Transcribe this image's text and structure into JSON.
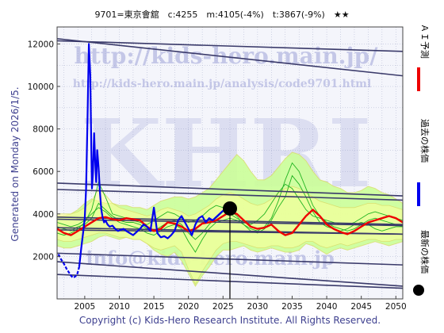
{
  "header": {
    "title": "9701=東京會舘　c:4255　m:4105(-4%)　t:3867(-9%)　★★"
  },
  "side_text": "Generated on Monday 2026/1/5.",
  "copyright": "Copyright (c) Kids-Hero Research Institute. All Rights Reserved.",
  "watermarks": {
    "url": "http://kids-hero.main.jp/",
    "path": "http://kids-hero.main.jp/analysis/code9701.html",
    "big": "KHRI",
    "mail": "info@kids-hero.main.jp"
  },
  "legend": [
    {
      "label": "ＡＩ予測",
      "color": "#ee0000",
      "kind": "line"
    },
    {
      "label": "過去の株価",
      "color": "#0000ee",
      "kind": "line"
    },
    {
      "label": "最新の株価",
      "color": "#000000",
      "kind": "dot"
    }
  ],
  "chart_data": {
    "type": "line",
    "xlim": [
      2001,
      2051
    ],
    "ylim": [
      0,
      12800
    ],
    "xticks": [
      2005,
      2010,
      2015,
      2020,
      2025,
      2030,
      2035,
      2040,
      2045,
      2050
    ],
    "yticks": [
      2000,
      4000,
      6000,
      8000,
      10000,
      12000
    ],
    "grid": true,
    "colors": {
      "history": "#0000ee",
      "ai": "#ee0000",
      "band_fill": "#ccff99",
      "band_fill_dark": "#a8e065",
      "band_edge": "#d8e070",
      "green": "#22b422",
      "envelope": "#ffff99",
      "trend": "#3a3a6a",
      "marker": "#000000"
    },
    "latest": {
      "x": 2026.0,
      "y": 4255
    },
    "history": {
      "x": [
        2001.2,
        2001.5,
        2002.0,
        2002.4,
        2002.8,
        2003.0,
        2003.3,
        2003.6,
        2003.9,
        2004.2,
        2004.5,
        2004.8,
        2005.0,
        2005.2,
        2005.4,
        2005.6,
        2005.8,
        2005.95,
        2006.05,
        2006.2,
        2006.35,
        2006.5,
        2006.65,
        2006.8,
        2007.0,
        2007.2,
        2007.4,
        2007.6,
        2007.8,
        2008.0,
        2008.3,
        2008.6,
        2009.0,
        2009.4,
        2009.8,
        2010.2,
        2010.6,
        2011.0,
        2011.5,
        2012.0,
        2012.5,
        2013.0,
        2013.5,
        2014.0,
        2014.5,
        2015.0,
        2015.5,
        2016.0,
        2016.5,
        2017.0,
        2017.5,
        2018.0,
        2018.5,
        2019.0,
        2019.5,
        2020.0,
        2020.5,
        2021.0,
        2021.5,
        2022.0,
        2022.5,
        2023.0,
        2023.5,
        2024.0,
        2024.5,
        2025.0,
        2025.5,
        2026.0
      ],
      "y": [
        2100,
        1900,
        1650,
        1400,
        1200,
        1100,
        1000,
        1050,
        1150,
        1500,
        2400,
        3200,
        3800,
        5200,
        8500,
        12000,
        10500,
        7000,
        5200,
        6000,
        7800,
        6500,
        5500,
        7000,
        6200,
        5000,
        4200,
        3800,
        3600,
        3700,
        3500,
        3400,
        3450,
        3300,
        3200,
        3250,
        3300,
        3200,
        3100,
        3000,
        3150,
        3300,
        3500,
        3400,
        3200,
        4300,
        3100,
        2900,
        2950,
        2850,
        3000,
        3200,
        3700,
        3900,
        3600,
        3300,
        3000,
        3500,
        3800,
        3900,
        3600,
        3800,
        3700,
        3850,
        4000,
        4150,
        4100,
        4255
      ]
    },
    "ai": {
      "x": [
        2001.0,
        2002.0,
        2003.0,
        2004.0,
        2005.0,
        2006.0,
        2007.0,
        2008.0,
        2009.0,
        2010.0,
        2011.0,
        2012.0,
        2013.0,
        2014.0,
        2015.0,
        2016.0,
        2017.0,
        2018.0,
        2019.0,
        2020.0,
        2021.0,
        2022.0,
        2023.0,
        2024.0,
        2025.0,
        2026.0,
        2027.0,
        2028.0,
        2029.0,
        2030.0,
        2031.0,
        2032.0,
        2033.0,
        2034.0,
        2035.0,
        2036.0,
        2037.0,
        2038.0,
        2039.0,
        2040.0,
        2041.0,
        2042.0,
        2043.0,
        2044.0,
        2045.0,
        2046.0,
        2047.0,
        2048.0,
        2049.0,
        2050.0,
        2051.0
      ],
      "y": [
        3300,
        3100,
        3000,
        3200,
        3400,
        3600,
        3800,
        3850,
        3750,
        3700,
        3800,
        3750,
        3700,
        3400,
        3200,
        3300,
        3600,
        3550,
        3400,
        3200,
        3300,
        3550,
        3600,
        3700,
        3900,
        4100,
        4000,
        3700,
        3400,
        3300,
        3350,
        3500,
        3200,
        3000,
        3100,
        3500,
        3900,
        4200,
        3900,
        3500,
        3300,
        3150,
        3050,
        3200,
        3400,
        3600,
        3700,
        3800,
        3900,
        3800,
        3600
      ]
    },
    "band_top": [
      3900,
      3900,
      4000,
      4200,
      4500,
      4700,
      4600,
      4500,
      4500,
      4400,
      4400,
      4300,
      4300,
      4200,
      4400,
      4600,
      4700,
      4800,
      4800,
      4700,
      4800,
      5000,
      5200,
      5600,
      6000,
      6400,
      6800,
      6500,
      6000,
      5600,
      5600,
      5800,
      6200,
      6600,
      6900,
      6800,
      6500,
      6000,
      5600,
      5500,
      5300,
      5200,
      5000,
      5000,
      5100,
      5300,
      5200,
      5000,
      4900,
      4700,
      4500
    ],
    "band_bottom": [
      2500,
      2400,
      2400,
      2500,
      2600,
      2700,
      2900,
      3000,
      2900,
      2800,
      2900,
      2800,
      2800,
      2600,
      2300,
      2100,
      2000,
      2200,
      1800,
      1200,
      600,
      1100,
      1500,
      2000,
      2300,
      2300,
      2400,
      2500,
      2300,
      2200,
      2300,
      2400,
      2300,
      2200,
      2200,
      2300,
      2600,
      2500,
      2300,
      2100,
      2300,
      2400,
      2300,
      2400,
      2500,
      2600,
      2700,
      2600,
      2500,
      2600,
      2700
    ],
    "green_lines": [
      [
        3100,
        3000,
        3100,
        3300,
        3600,
        4200,
        5500,
        4800,
        4000,
        3900,
        3800,
        3700,
        3600,
        3500,
        3700,
        3900,
        4100,
        4000,
        3800,
        3600,
        3700,
        3900,
        4200,
        4400,
        4300,
        4000,
        3800,
        3600,
        3500,
        3700,
        4000,
        4500,
        5000,
        5400,
        5200,
        4700,
        4200,
        3900,
        3800,
        3700,
        3600,
        3500,
        3500,
        3600,
        3800,
        4000,
        4100,
        4000,
        3900,
        3800,
        3700
      ],
      [
        3400,
        3300,
        3200,
        3400,
        3500,
        3800,
        4500,
        4200,
        3900,
        3700,
        3600,
        3600,
        3500,
        3300,
        3200,
        3400,
        3600,
        3700,
        3500,
        3100,
        2800,
        3100,
        3500,
        3800,
        4100,
        4200,
        3900,
        3500,
        3200,
        3100,
        3300,
        3700,
        4300,
        4800,
        5800,
        5400,
        4800,
        4100,
        3600,
        3400,
        3300,
        3200,
        3300,
        3500,
        3600,
        3500,
        3300,
        3200,
        3300,
        3400,
        3400
      ],
      [
        3600,
        3500,
        3400,
        3500,
        3700,
        4000,
        4300,
        4100,
        3800,
        3600,
        3500,
        3400,
        3300,
        3100,
        3000,
        3200,
        3400,
        3500,
        3300,
        2700,
        2200,
        2800,
        3300,
        3600,
        3700,
        3800,
        3700,
        3500,
        3300,
        3200,
        3400,
        3800,
        4600,
        5600,
        6400,
        6000,
        5200,
        4400,
        3900,
        3600,
        3400,
        3300,
        3200,
        3300,
        3500,
        3700,
        3800,
        3700,
        3600,
        3500,
        3400
      ]
    ],
    "envelope_upper": [
      4000,
      4000,
      4000,
      4100,
      4300,
      4600,
      5200,
      4900,
      4500,
      4300,
      4200,
      4100,
      4000,
      3900,
      4000,
      4200,
      4300,
      4200,
      4100,
      3900,
      4000,
      4200,
      4400,
      4700,
      4900,
      5000,
      4900,
      4700,
      4500,
      4400,
      4500,
      4700,
      5000,
      5200,
      5300,
      5200,
      5000,
      4800,
      4600,
      4500,
      4400,
      4300,
      4300,
      4300,
      4400,
      4500,
      4500,
      4400,
      4400,
      4300,
      4200
    ],
    "envelope_lower": [
      2800,
      2700,
      2700,
      2800,
      2900,
      3000,
      3100,
      3100,
      3000,
      2900,
      2900,
      2800,
      2800,
      2600,
      2400,
      2300,
      2400,
      2500,
      2200,
      1400,
      700,
      1300,
      1800,
      2300,
      2600,
      2700,
      2700,
      2600,
      2500,
      2400,
      2400,
      2500,
      2500,
      2400,
      2400,
      2500,
      2700,
      2700,
      2500,
      2400,
      2500,
      2600,
      2500,
      2600,
      2700,
      2800,
      2800,
      2700,
      2700,
      2800,
      2800
    ],
    "trend_lines": [
      {
        "y_start": 12250,
        "y_end": 10500
      },
      {
        "y_start": 12150,
        "y_end": 11650
      },
      {
        "y_start": 5450,
        "y_end": 4850
      },
      {
        "y_start": 5150,
        "y_end": 4650
      },
      {
        "y_start": 3850,
        "y_end": 3500
      },
      {
        "y_start": 3750,
        "y_end": 3450
      },
      {
        "y_start": 3350,
        "y_end": 3050
      },
      {
        "y_start": 3250,
        "y_end": 3050
      },
      {
        "y_start": 2150,
        "y_end": 1600
      },
      {
        "y_start": 1750,
        "y_end": 600
      },
      {
        "y_start": 1150,
        "y_end": 500
      }
    ]
  }
}
